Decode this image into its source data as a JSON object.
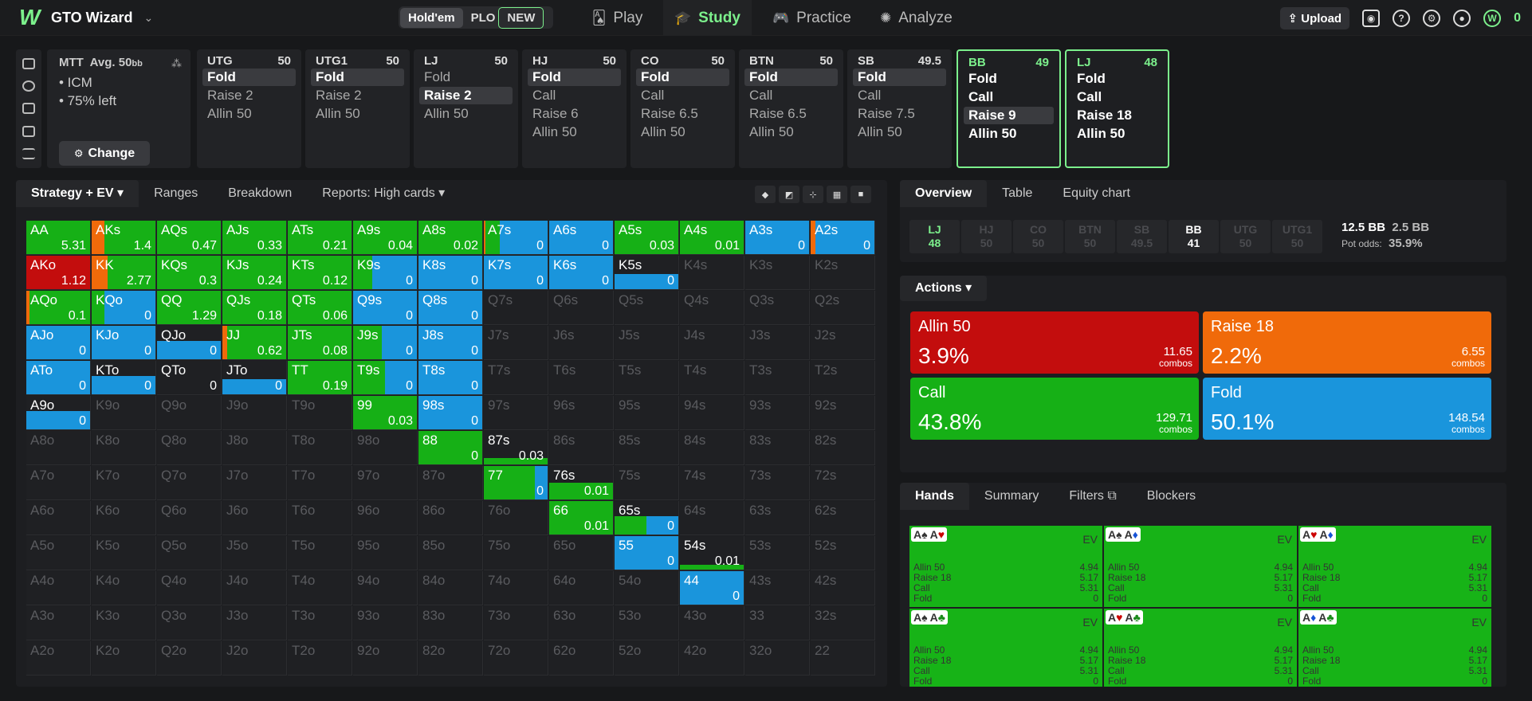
{
  "app": {
    "brand": "GTO Wizard",
    "logo": "W"
  },
  "game": {
    "holdem": "Hold'em",
    "plo": "PLO",
    "new_badge": "NEW"
  },
  "nav": [
    {
      "label": "Play",
      "icon": "cards-icon"
    },
    {
      "label": "Study",
      "icon": "graduation-cap-icon"
    },
    {
      "label": "Practice",
      "icon": "gamepad-icon"
    },
    {
      "label": "Analyze",
      "icon": "bulb-icon"
    }
  ],
  "topright": {
    "upload": "Upload",
    "coins": "0"
  },
  "mtt": {
    "title": "MTT",
    "avg": "Avg. 50",
    "bb": "bb",
    "line1": "• ICM",
    "line2": "• 75% left",
    "change": "Change"
  },
  "positions": [
    {
      "name": "UTG",
      "stack": "50",
      "actions": [
        "Fold",
        "Raise 2",
        "Allin 50"
      ],
      "sel": 0
    },
    {
      "name": "UTG1",
      "stack": "50",
      "actions": [
        "Fold",
        "Raise 2",
        "Allin 50"
      ],
      "sel": 0
    },
    {
      "name": "LJ",
      "stack": "50",
      "actions": [
        "Fold",
        "Raise 2",
        "Allin 50"
      ],
      "sel": 1
    },
    {
      "name": "HJ",
      "stack": "50",
      "actions": [
        "Fold",
        "Call",
        "Raise 6",
        "Allin 50"
      ],
      "sel": 0
    },
    {
      "name": "CO",
      "stack": "50",
      "actions": [
        "Fold",
        "Call",
        "Raise 6.5",
        "Allin 50"
      ],
      "sel": 0
    },
    {
      "name": "BTN",
      "stack": "50",
      "actions": [
        "Fold",
        "Call",
        "Raise 6.5",
        "Allin 50"
      ],
      "sel": 0
    },
    {
      "name": "SB",
      "stack": "49.5",
      "actions": [
        "Fold",
        "Call",
        "Raise 7.5",
        "Allin 50"
      ],
      "sel": 0
    },
    {
      "name": "BB",
      "stack": "49",
      "actions": [
        "Fold",
        "Call",
        "Raise 9",
        "Allin 50"
      ],
      "sel": 2,
      "hl": true
    },
    {
      "name": "LJ",
      "stack": "48",
      "actions": [
        "Fold",
        "Call",
        "Raise 18",
        "Allin 50"
      ],
      "sel": -1,
      "hl": true
    }
  ],
  "left_tabs": [
    "Strategy + EV",
    "Ranges",
    "Breakdown",
    "Reports: High cards"
  ],
  "colors": {
    "allin": "#c30d0d",
    "raise": "#f06a0a",
    "call": "#16b016",
    "fold": "#1a95dc",
    "empty": "#1f2023"
  },
  "grid": [
    [
      [
        "AA",
        "5.31",
        [
          0,
          0,
          1,
          0
        ]
      ],
      [
        "AKs",
        "1.4",
        [
          0,
          0.2,
          0.8,
          0
        ]
      ],
      [
        "AQs",
        "0.47",
        [
          0,
          0,
          1,
          0
        ]
      ],
      [
        "AJs",
        "0.33",
        [
          0,
          0,
          1,
          0
        ]
      ],
      [
        "ATs",
        "0.21",
        [
          0,
          0,
          1,
          0
        ]
      ],
      [
        "A9s",
        "0.04",
        [
          0,
          0,
          1,
          0
        ]
      ],
      [
        "A8s",
        "0.02",
        [
          0,
          0,
          1,
          0
        ]
      ],
      [
        "A7s",
        "0",
        [
          0,
          0.03,
          0.22,
          0.75
        ]
      ],
      [
        "A6s",
        "0",
        [
          0,
          0,
          0,
          1
        ]
      ],
      [
        "A5s",
        "0.03",
        [
          0,
          0,
          1,
          0
        ]
      ],
      [
        "A4s",
        "0.01",
        [
          0,
          0,
          1,
          0
        ]
      ],
      [
        "A3s",
        "0",
        [
          0,
          0,
          0,
          1
        ]
      ],
      [
        "A2s",
        "0",
        [
          0,
          0.08,
          0,
          0.92
        ]
      ]
    ],
    [
      [
        "AKo",
        "1.12",
        [
          1,
          0,
          0,
          0
        ]
      ],
      [
        "KK",
        "2.77",
        [
          0,
          0.25,
          0.75,
          0
        ]
      ],
      [
        "KQs",
        "0.3",
        [
          0,
          0,
          1,
          0
        ]
      ],
      [
        "KJs",
        "0.24",
        [
          0,
          0,
          1,
          0
        ]
      ],
      [
        "KTs",
        "0.12",
        [
          0,
          0,
          1,
          0
        ]
      ],
      [
        "K9s",
        "0",
        [
          0,
          0,
          0.3,
          0.7
        ]
      ],
      [
        "K8s",
        "0",
        [
          0,
          0,
          0,
          1
        ]
      ],
      [
        "K7s",
        "0",
        [
          0,
          0,
          0,
          1
        ]
      ],
      [
        "K6s",
        "0",
        [
          0,
          0,
          0,
          1
        ]
      ],
      [
        "K5s",
        "0",
        [
          0,
          0,
          0,
          1
        ],
        0.45
      ],
      [
        "K4s"
      ],
      [
        "K3s"
      ],
      [
        "K2s"
      ]
    ],
    [
      [
        "AQo",
        "0.1",
        [
          0,
          0.05,
          0.95,
          0
        ]
      ],
      [
        "KQo",
        "0",
        [
          0,
          0,
          0.2,
          0.8
        ]
      ],
      [
        "QQ",
        "1.29",
        [
          0,
          0,
          1,
          0
        ]
      ],
      [
        "QJs",
        "0.18",
        [
          0,
          0,
          1,
          0
        ]
      ],
      [
        "QTs",
        "0.06",
        [
          0,
          0,
          1,
          0
        ]
      ],
      [
        "Q9s",
        "0",
        [
          0,
          0,
          0,
          1
        ]
      ],
      [
        "Q8s",
        "0",
        [
          0,
          0,
          0,
          1
        ]
      ],
      [
        "Q7s"
      ],
      [
        "Q6s"
      ],
      [
        "Q5s"
      ],
      [
        "Q4s"
      ],
      [
        "Q3s"
      ],
      [
        "Q2s"
      ]
    ],
    [
      [
        "AJo",
        "0",
        [
          0,
          0,
          0,
          1
        ]
      ],
      [
        "KJo",
        "0",
        [
          0,
          0,
          0,
          1
        ]
      ],
      [
        "QJo",
        "0",
        [
          0,
          0,
          0,
          1
        ],
        0.55
      ],
      [
        "JJ",
        "0.62",
        [
          0,
          0.08,
          0.92,
          0
        ]
      ],
      [
        "JTs",
        "0.08",
        [
          0,
          0,
          1,
          0
        ]
      ],
      [
        "J9s",
        "0",
        [
          0,
          0,
          0.45,
          0.55
        ]
      ],
      [
        "J8s",
        "0",
        [
          0,
          0,
          0,
          1
        ]
      ],
      [
        "J7s"
      ],
      [
        "J6s"
      ],
      [
        "J5s"
      ],
      [
        "J4s"
      ],
      [
        "J3s"
      ],
      [
        "J2s"
      ]
    ],
    [
      [
        "ATo",
        "0",
        [
          0,
          0,
          0,
          1
        ]
      ],
      [
        "KTo",
        "0",
        [
          0,
          0,
          0,
          1
        ],
        0.55
      ],
      [
        "QTo",
        "0"
      ],
      [
        "JTo",
        "0",
        [
          0,
          0,
          0,
          1
        ],
        0.45
      ],
      [
        "TT",
        "0.19",
        [
          0,
          0,
          1,
          0
        ]
      ],
      [
        "T9s",
        "0",
        [
          0,
          0,
          0.5,
          0.5
        ]
      ],
      [
        "T8s",
        "0",
        [
          0,
          0,
          0,
          1
        ]
      ],
      [
        "T7s"
      ],
      [
        "T6s"
      ],
      [
        "T5s"
      ],
      [
        "T4s"
      ],
      [
        "T3s"
      ],
      [
        "T2s"
      ]
    ],
    [
      [
        "A9o",
        "0",
        [
          0,
          0,
          0,
          1
        ],
        0.55
      ],
      [
        "K9o"
      ],
      [
        "Q9o"
      ],
      [
        "J9o"
      ],
      [
        "T9o"
      ],
      [
        "99",
        "0.03",
        [
          0,
          0,
          1,
          0
        ]
      ],
      [
        "98s",
        "0",
        [
          0,
          0,
          0,
          1
        ]
      ],
      [
        "97s"
      ],
      [
        "96s"
      ],
      [
        "95s"
      ],
      [
        "94s"
      ],
      [
        "93s"
      ],
      [
        "92s"
      ]
    ],
    [
      [
        "A8o"
      ],
      [
        "K8o"
      ],
      [
        "Q8o"
      ],
      [
        "J8o"
      ],
      [
        "T8o"
      ],
      [
        "98o"
      ],
      [
        "88",
        "0",
        [
          0,
          0,
          1,
          0
        ]
      ],
      [
        "87s",
        "0.03",
        [
          0,
          0,
          1,
          0
        ],
        0.2
      ],
      [
        "86s"
      ],
      [
        "85s"
      ],
      [
        "84s"
      ],
      [
        "83s"
      ],
      [
        "82s"
      ]
    ],
    [
      [
        "A7o"
      ],
      [
        "K7o"
      ],
      [
        "Q7o"
      ],
      [
        "J7o"
      ],
      [
        "T7o"
      ],
      [
        "97o"
      ],
      [
        "87o"
      ],
      [
        "77",
        "0",
        [
          0,
          0,
          0.8,
          0.2
        ]
      ],
      [
        "76s",
        "0.01",
        [
          0,
          0,
          1,
          0
        ],
        0.5
      ],
      [
        "75s"
      ],
      [
        "74s"
      ],
      [
        "73s"
      ],
      [
        "72s"
      ]
    ],
    [
      [
        "A6o"
      ],
      [
        "K6o"
      ],
      [
        "Q6o"
      ],
      [
        "J6o"
      ],
      [
        "T6o"
      ],
      [
        "96o"
      ],
      [
        "86o"
      ],
      [
        "76o"
      ],
      [
        "66",
        "0.01",
        [
          0,
          0,
          1,
          0
        ]
      ],
      [
        "65s",
        "0",
        [
          0,
          0,
          0.5,
          0.5
        ],
        0.55
      ],
      [
        "64s"
      ],
      [
        "63s"
      ],
      [
        "62s"
      ]
    ],
    [
      [
        "A5o"
      ],
      [
        "K5o"
      ],
      [
        "Q5o"
      ],
      [
        "J5o"
      ],
      [
        "T5o"
      ],
      [
        "95o"
      ],
      [
        "85o"
      ],
      [
        "75o"
      ],
      [
        "65o"
      ],
      [
        "55",
        "0",
        [
          0,
          0,
          0,
          1
        ]
      ],
      [
        "54s",
        "0.01",
        [
          0,
          0,
          1,
          0
        ],
        0.15
      ],
      [
        "53s"
      ],
      [
        "52s"
      ]
    ],
    [
      [
        "A4o"
      ],
      [
        "K4o"
      ],
      [
        "Q4o"
      ],
      [
        "J4o"
      ],
      [
        "T4o"
      ],
      [
        "94o"
      ],
      [
        "84o"
      ],
      [
        "74o"
      ],
      [
        "64o"
      ],
      [
        "54o"
      ],
      [
        "44",
        "0",
        [
          0,
          0,
          0,
          1
        ]
      ],
      [
        "43s"
      ],
      [
        "42s"
      ]
    ],
    [
      [
        "A3o"
      ],
      [
        "K3o"
      ],
      [
        "Q3o"
      ],
      [
        "J3o"
      ],
      [
        "T3o"
      ],
      [
        "93o"
      ],
      [
        "83o"
      ],
      [
        "73o"
      ],
      [
        "63o"
      ],
      [
        "53o"
      ],
      [
        "43o"
      ],
      [
        "33"
      ],
      [
        "32s"
      ]
    ],
    [
      [
        "A2o"
      ],
      [
        "K2o"
      ],
      [
        "Q2o"
      ],
      [
        "J2o"
      ],
      [
        "T2o"
      ],
      [
        "92o"
      ],
      [
        "82o"
      ],
      [
        "72o"
      ],
      [
        "62o"
      ],
      [
        "52o"
      ],
      [
        "42o"
      ],
      [
        "32o"
      ],
      [
        "22"
      ]
    ]
  ],
  "overview": {
    "tabs": [
      "Overview",
      "Table",
      "Equity chart"
    ],
    "seats": [
      {
        "n": "LJ",
        "s": "48",
        "c": "g"
      },
      {
        "n": "HJ",
        "s": "50"
      },
      {
        "n": "CO",
        "s": "50"
      },
      {
        "n": "BTN",
        "s": "50"
      },
      {
        "n": "SB",
        "s": "49.5"
      },
      {
        "n": "BB",
        "s": "41",
        "c": "w"
      },
      {
        "n": "UTG",
        "s": "50"
      },
      {
        "n": "UTG1",
        "s": "50"
      }
    ],
    "pot": "12.5 BB",
    "tocall": "2.5 BB",
    "potodds_label": "Pot odds:",
    "potodds": "35.9%"
  },
  "actions": {
    "label": "Actions",
    "items": [
      {
        "name": "Allin 50",
        "pct": "3.9%",
        "combos": "11.65",
        "unit": "combos",
        "color": "#c30d0d"
      },
      {
        "name": "Raise 18",
        "pct": "2.2%",
        "combos": "6.55",
        "unit": "combos",
        "color": "#f06a0a"
      },
      {
        "name": "Call",
        "pct": "43.8%",
        "combos": "129.71",
        "unit": "combos",
        "color": "#16b016"
      },
      {
        "name": "Fold",
        "pct": "50.1%",
        "combos": "148.54",
        "unit": "combos",
        "color": "#1a95dc"
      }
    ],
    "freq": [
      0.039,
      0.022,
      0.438,
      0.501
    ]
  },
  "hands": {
    "tabs": [
      "Hands",
      "Summary",
      "Filters",
      "Blockers"
    ],
    "ev_label": "EV",
    "cards": [
      {
        "c": [
          [
            "A",
            "♠",
            "s"
          ],
          [
            "A",
            "♥",
            "r"
          ]
        ]
      },
      {
        "c": [
          [
            "A",
            "♠",
            "s"
          ],
          [
            "A",
            "♦",
            "b"
          ]
        ]
      },
      {
        "c": [
          [
            "A",
            "♥",
            "r"
          ],
          [
            "A",
            "♦",
            "b"
          ]
        ]
      },
      {
        "c": [
          [
            "A",
            "♠",
            "s"
          ],
          [
            "A",
            "♣",
            "gr"
          ]
        ]
      },
      {
        "c": [
          [
            "A",
            "♥",
            "r"
          ],
          [
            "A",
            "♣",
            "gr"
          ]
        ]
      },
      {
        "c": [
          [
            "A",
            "♦",
            "b"
          ],
          [
            "A",
            "♣",
            "gr"
          ]
        ]
      }
    ],
    "rows": [
      [
        "Allin 50",
        "4.94"
      ],
      [
        "Raise 18",
        "5.17"
      ],
      [
        "Call",
        "5.31"
      ],
      [
        "Fold",
        "0"
      ]
    ]
  }
}
